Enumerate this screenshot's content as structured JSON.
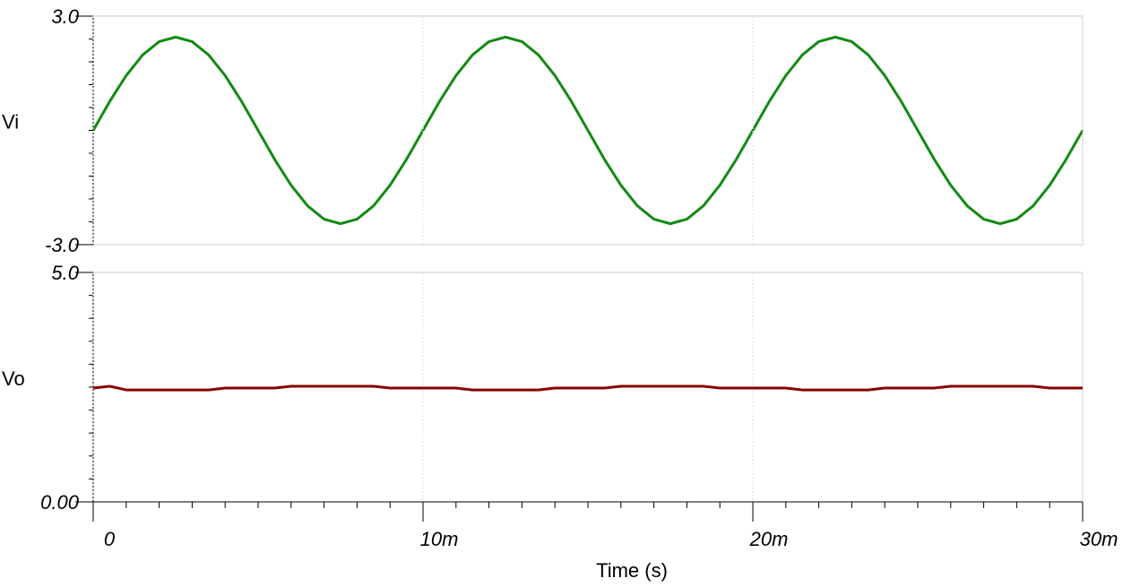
{
  "chart_data": [
    {
      "type": "line",
      "x": [
        0,
        0.0005,
        0.001,
        0.0015,
        0.002,
        0.0025,
        0.003,
        0.0035,
        0.004,
        0.0045,
        0.005,
        0.0055,
        0.006,
        0.0065,
        0.007,
        0.0075,
        0.008,
        0.0085,
        0.009,
        0.0095,
        0.01,
        0.0105,
        0.011,
        0.0115,
        0.012,
        0.0125,
        0.013,
        0.0135,
        0.014,
        0.0145,
        0.015,
        0.0155,
        0.016,
        0.0165,
        0.017,
        0.0175,
        0.018,
        0.0185,
        0.019,
        0.0195,
        0.02,
        0.0205,
        0.021,
        0.0215,
        0.022,
        0.0225,
        0.023,
        0.0235,
        0.024,
        0.0245,
        0.025,
        0.0255,
        0.026,
        0.0265,
        0.027,
        0.0275,
        0.028,
        0.0285,
        0.029,
        0.0295,
        0.03
      ],
      "series": [
        {
          "name": "Vi",
          "color": "#138a13",
          "values": [
            0,
            0.76,
            1.44,
            1.98,
            2.33,
            2.45,
            2.33,
            1.98,
            1.44,
            0.76,
            0,
            -0.76,
            -1.44,
            -1.98,
            -2.33,
            -2.45,
            -2.33,
            -1.98,
            -1.44,
            -0.76,
            0,
            0.76,
            1.44,
            1.98,
            2.33,
            2.45,
            2.33,
            1.98,
            1.44,
            0.76,
            0,
            -0.76,
            -1.44,
            -1.98,
            -2.33,
            -2.45,
            -2.33,
            -1.98,
            -1.44,
            -0.76,
            0,
            0.76,
            1.44,
            1.98,
            2.33,
            2.45,
            2.33,
            1.98,
            1.44,
            0.76,
            0,
            -0.76,
            -1.44,
            -1.98,
            -2.33,
            -2.45,
            -2.33,
            -1.98,
            -1.44,
            -0.76,
            0
          ]
        }
      ],
      "xlim": [
        0,
        0.03
      ],
      "ylim": [
        -3,
        3
      ],
      "yticks": [
        {
          "value": 3,
          "label": "3.0"
        },
        {
          "value": -3,
          "label": "-3.0"
        }
      ]
    },
    {
      "type": "line",
      "x": [
        0,
        0.0005,
        0.001,
        0.0015,
        0.002,
        0.0025,
        0.003,
        0.0035,
        0.004,
        0.0045,
        0.005,
        0.0055,
        0.006,
        0.0065,
        0.007,
        0.0075,
        0.008,
        0.0085,
        0.009,
        0.0095,
        0.01,
        0.0105,
        0.011,
        0.0115,
        0.012,
        0.0125,
        0.013,
        0.0135,
        0.014,
        0.0145,
        0.015,
        0.0155,
        0.016,
        0.0165,
        0.017,
        0.0175,
        0.018,
        0.0185,
        0.019,
        0.0195,
        0.02,
        0.0205,
        0.021,
        0.0215,
        0.022,
        0.0225,
        0.023,
        0.0235,
        0.024,
        0.0245,
        0.025,
        0.0255,
        0.026,
        0.0265,
        0.027,
        0.0275,
        0.028,
        0.0285,
        0.029,
        0.0295,
        0.03
      ],
      "series": [
        {
          "name": "Vo",
          "color": "#8b0000",
          "values": [
            2.48,
            2.52,
            2.44,
            2.44,
            2.44,
            2.44,
            2.44,
            2.44,
            2.48,
            2.48,
            2.48,
            2.48,
            2.52,
            2.52,
            2.52,
            2.52,
            2.52,
            2.52,
            2.48,
            2.48,
            2.48,
            2.48,
            2.48,
            2.44,
            2.44,
            2.44,
            2.44,
            2.44,
            2.48,
            2.48,
            2.48,
            2.48,
            2.52,
            2.52,
            2.52,
            2.52,
            2.52,
            2.52,
            2.48,
            2.48,
            2.48,
            2.48,
            2.48,
            2.44,
            2.44,
            2.44,
            2.44,
            2.44,
            2.48,
            2.48,
            2.48,
            2.48,
            2.52,
            2.52,
            2.52,
            2.52,
            2.52,
            2.52,
            2.48,
            2.48,
            2.48
          ]
        }
      ],
      "xlim": [
        0,
        0.03
      ],
      "ylim": [
        0,
        5
      ],
      "yticks": [
        {
          "value": 5,
          "label": "5.0"
        },
        {
          "value": 0,
          "label": "0.00"
        }
      ],
      "xticks": [
        0,
        {
          "value": 0.01,
          "label": "10m"
        },
        {
          "value": 0.02,
          "label": "20m"
        },
        {
          "value": 0.03,
          "label": "30m"
        }
      ],
      "xlabel": "Time (s)",
      "grid": true
    }
  ]
}
